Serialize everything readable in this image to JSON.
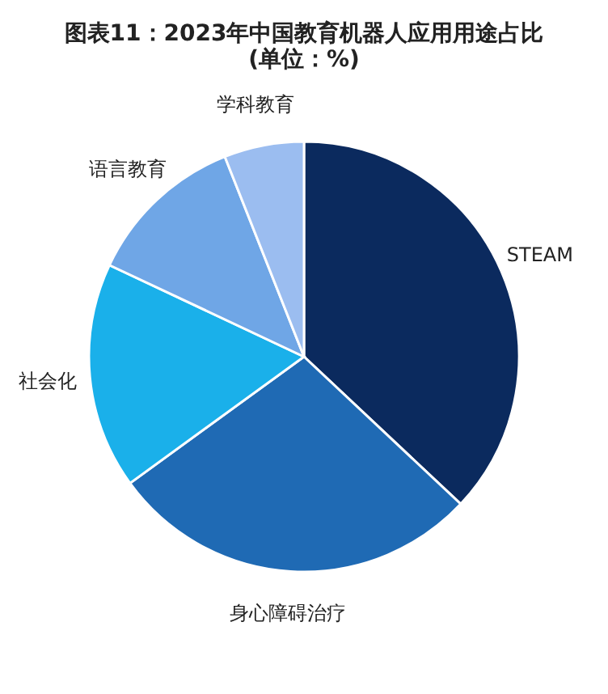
{
  "chart_data": {
    "type": "pie",
    "title": "图表11：2023年中国教育机器人应用用途占比(单位：%)",
    "categories": [
      "STEAM",
      "身心障碍治疗",
      "社会化",
      "语言教育",
      "学科教育"
    ],
    "values": [
      37,
      28,
      17,
      12,
      6
    ],
    "colors": [
      "#0b2a5e",
      "#1f6ab4",
      "#1ab0ea",
      "#6fa6e6",
      "#9bbdf0"
    ],
    "legend": false
  }
}
